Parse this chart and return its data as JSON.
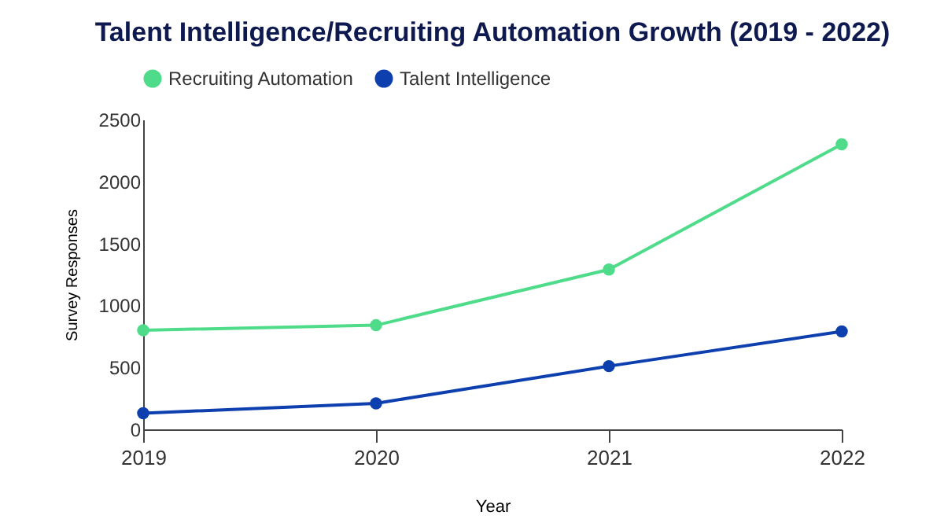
{
  "chart_data": {
    "type": "line",
    "title": "Talent Intelligence/Recruiting Automation Growth (2019 - 2022)",
    "xlabel": "Year",
    "ylabel": "Survey Responses",
    "categories": [
      "2019",
      "2020",
      "2021",
      "2022"
    ],
    "series": [
      {
        "name": "Recruiting Automation",
        "color": "#4fdc8a",
        "values": [
          800,
          840,
          1290,
          2300
        ]
      },
      {
        "name": "Talent Intelligence",
        "color": "#0d3fae",
        "values": [
          130,
          210,
          510,
          790
        ]
      }
    ],
    "ylim": [
      0,
      2500
    ],
    "yticks": [
      0,
      500,
      1000,
      1500,
      2000,
      2500
    ],
    "grid": false,
    "legend": "top",
    "marker": "circle",
    "line_style": "solid"
  }
}
